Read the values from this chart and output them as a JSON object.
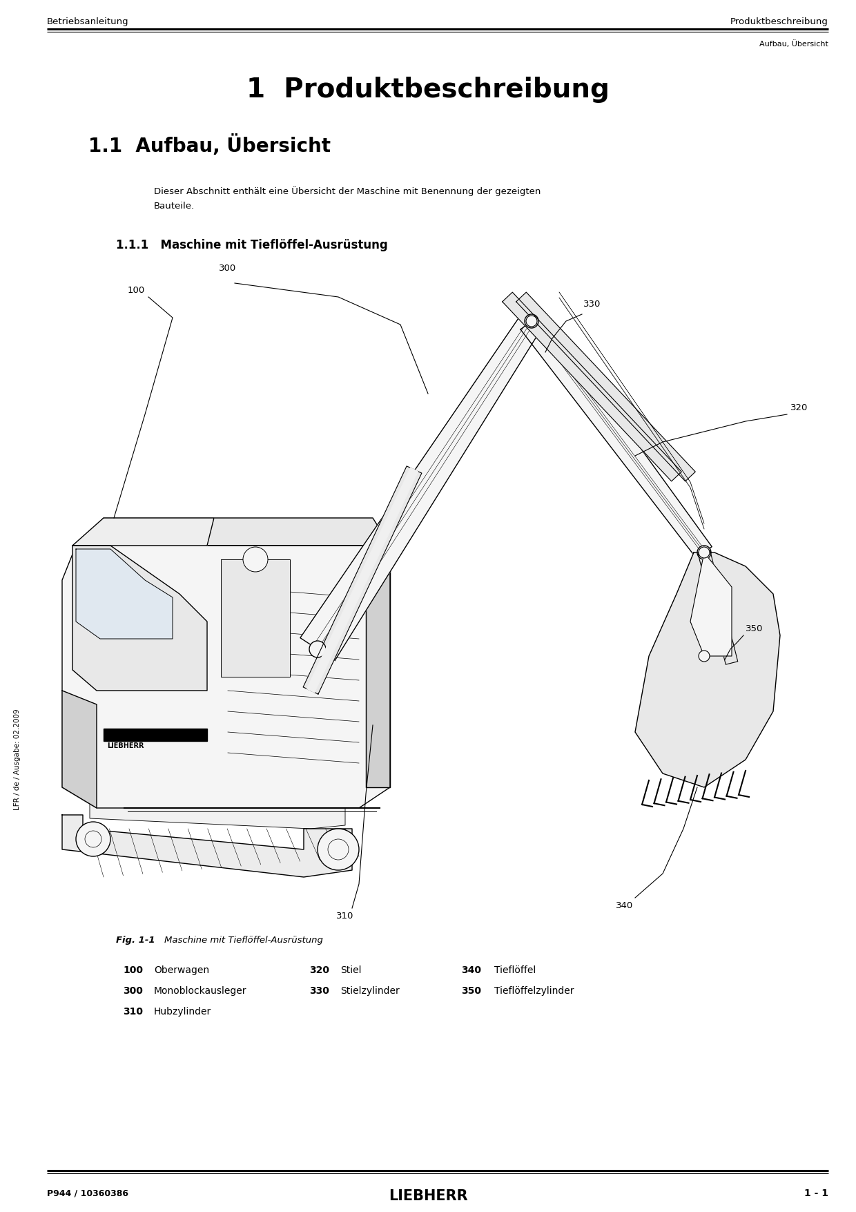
{
  "bg_color": "#ffffff",
  "header_left": "Betriebsanleitung",
  "header_right": "Produktbeschreibung",
  "header_sub_right": "Aufbau, Übersicht",
  "title_number": "1",
  "title_text": "Produktbeschreibung",
  "section_number": "1.1",
  "section_title": "Aufbau, Übersicht",
  "intro_text": "Dieser Abschnitt enthält eine Übersicht der Maschine mit Benennung der gezeigten Bauteile.",
  "intro_text2": "Bauteile.",
  "subsection_number": "1.1.1",
  "subsection_title": "Maschine mit Tieflöffel-Ausrüstung",
  "fig_caption_bold": "Fig. 1-1",
  "fig_caption_text": "Maschine mit Tieflöffel-Ausrüstung",
  "parts_row1": [
    {
      "num": "100",
      "name": "Oberwagen"
    },
    {
      "num": "320",
      "name": "Stiel"
    },
    {
      "num": "340",
      "name": "Tieflöffel"
    }
  ],
  "parts_row2": [
    {
      "num": "300",
      "name": "Monoblockausleger"
    },
    {
      "num": "330",
      "name": "Stielzylinder"
    },
    {
      "num": "350",
      "name": "Tieflöffelzylinder"
    }
  ],
  "parts_row3": [
    {
      "num": "310",
      "name": "Hubzylinder"
    }
  ],
  "footer_left": "P944 / 10360386",
  "footer_center": "LIEBHERR",
  "footer_right": "1 - 1",
  "side_text": "LFR / de / Ausgabe: 02.2009"
}
